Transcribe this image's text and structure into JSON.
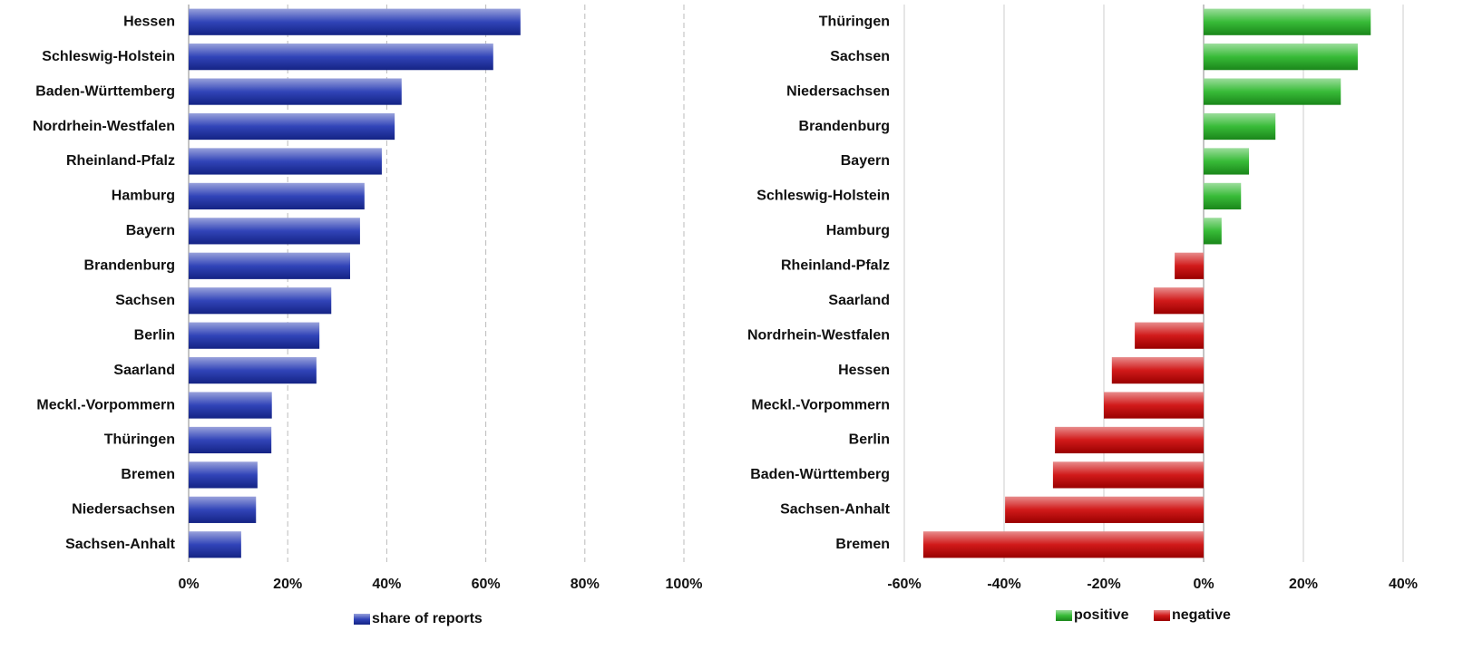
{
  "chart_data": [
    {
      "type": "bar",
      "orientation": "horizontal",
      "categories": [
        "Hessen",
        "Schleswig-Holstein",
        "Baden-Württemberg",
        "Nordrhein-Westfalen",
        "Rheinland-Pfalz",
        "Hamburg",
        "Bayern",
        "Brandenburg",
        "Sachsen",
        "Berlin",
        "Saarland",
        "Meckl.-Vorpommern",
        "Thüringen",
        "Bremen",
        "Niedersachsen",
        "Sachsen-Anhalt"
      ],
      "series": [
        {
          "name": "share of reports",
          "color": "#1a2fb0",
          "values": [
            67.0,
            61.5,
            43.0,
            41.6,
            39.0,
            35.5,
            34.6,
            32.6,
            28.8,
            26.4,
            25.8,
            16.8,
            16.7,
            13.9,
            13.6,
            10.6
          ]
        }
      ],
      "xlim": [
        0,
        100
      ],
      "xticks": [
        {
          "value": 0,
          "label": "0%"
        },
        {
          "value": 20,
          "label": "20%"
        },
        {
          "value": 40,
          "label": "40%"
        },
        {
          "value": 60,
          "label": "60%"
        },
        {
          "value": 80,
          "label": "80%"
        },
        {
          "value": 100,
          "label": "100%"
        }
      ],
      "grid": "dashed",
      "legend": "bottom"
    },
    {
      "type": "bar",
      "orientation": "horizontal",
      "categories": [
        "Thüringen",
        "Sachsen",
        "Niedersachsen",
        "Brandenburg",
        "Bayern",
        "Schleswig-Holstein",
        "Hamburg",
        "Rheinland-Pfalz",
        "Saarland",
        "Nordrhein-Westfalen",
        "Hessen",
        "Meckl.-Vorpommern",
        "Berlin",
        "Baden-Württemberg",
        "Sachsen-Anhalt",
        "Bremen"
      ],
      "series": [
        {
          "name": "positive",
          "color": "#22b322",
          "values": [
            33.5,
            30.9,
            27.5,
            14.4,
            9.1,
            7.5,
            3.6,
            null,
            null,
            null,
            null,
            null,
            null,
            null,
            null,
            null
          ]
        },
        {
          "name": "negative",
          "color": "#cc0000",
          "values": [
            null,
            null,
            null,
            null,
            null,
            null,
            null,
            -5.8,
            -10.0,
            -13.8,
            -18.4,
            -20.0,
            -29.8,
            -30.2,
            -39.8,
            -56.2
          ]
        }
      ],
      "xlim": [
        -60,
        40
      ],
      "xticks": [
        {
          "value": -60,
          "label": "-60%"
        },
        {
          "value": -40,
          "label": "-40%"
        },
        {
          "value": -20,
          "label": "-20%"
        },
        {
          "value": 0,
          "label": "0%"
        },
        {
          "value": 20,
          "label": "20%"
        },
        {
          "value": 40,
          "label": "40%"
        }
      ],
      "grid": "solid",
      "legend": "bottom"
    }
  ]
}
